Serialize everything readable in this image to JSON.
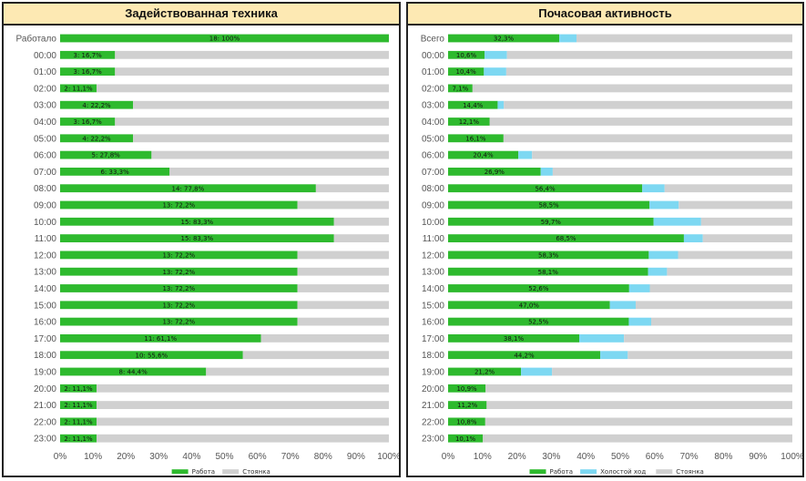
{
  "colors": {
    "work": "#2eba2e",
    "idle": "#7dd8f2",
    "stop": "#d0d0d0"
  },
  "charts": [
    {
      "title": "Задействованная техника",
      "chart_data": {
        "type": "bar",
        "orientation": "horizontal",
        "stacked": true,
        "categories": [
          "Работало",
          "00:00",
          "01:00",
          "02:00",
          "03:00",
          "04:00",
          "05:00",
          "06:00",
          "07:00",
          "08:00",
          "09:00",
          "10:00",
          "11:00",
          "12:00",
          "13:00",
          "14:00",
          "15:00",
          "16:00",
          "17:00",
          "18:00",
          "19:00",
          "20:00",
          "21:00",
          "22:00",
          "23:00"
        ],
        "series": [
          {
            "name": "Работа",
            "values": [
              100,
              16.7,
              16.7,
              11.1,
              22.2,
              16.7,
              22.2,
              27.8,
              33.3,
              77.8,
              72.2,
              83.3,
              83.3,
              72.2,
              72.2,
              72.2,
              72.2,
              72.2,
              61.1,
              55.6,
              44.4,
              11.1,
              11.1,
              11.1,
              11.1
            ]
          },
          {
            "name": "Стоянка",
            "values": [
              0,
              83.3,
              83.3,
              88.9,
              77.8,
              83.3,
              77.8,
              72.2,
              66.7,
              22.2,
              27.8,
              16.7,
              16.7,
              27.8,
              27.8,
              27.8,
              27.8,
              27.8,
              38.9,
              44.4,
              55.6,
              88.9,
              88.9,
              88.9,
              88.9
            ]
          }
        ],
        "data_labels": [
          "18: 100%",
          "3: 16,7%",
          "3: 16,7%",
          "2: 11,1%",
          "4: 22,2%",
          "3: 16,7%",
          "4: 22,2%",
          "5: 27,8%",
          "6: 33,3%",
          "14: 77,8%",
          "13: 72,2%",
          "15: 83,3%",
          "15: 83,3%",
          "13: 72,2%",
          "13: 72,2%",
          "13: 72,2%",
          "13: 72,2%",
          "13: 72,2%",
          "11: 61,1%",
          "10: 55,6%",
          "8: 44,4%",
          "2: 11,1%",
          "2: 11,1%",
          "2: 11,1%",
          "2: 11,1%"
        ],
        "xlim": [
          0,
          100
        ],
        "xticks": [
          "0%",
          "10%",
          "20%",
          "30%",
          "40%",
          "50%",
          "60%",
          "70%",
          "80%",
          "90%",
          "100%"
        ],
        "legend": "bottom"
      }
    },
    {
      "title": "Почасовая активность",
      "chart_data": {
        "type": "bar",
        "orientation": "horizontal",
        "stacked": true,
        "categories": [
          "Всего",
          "00:00",
          "01:00",
          "02:00",
          "03:00",
          "04:00",
          "05:00",
          "06:00",
          "07:00",
          "08:00",
          "09:00",
          "10:00",
          "11:00",
          "12:00",
          "13:00",
          "14:00",
          "15:00",
          "16:00",
          "17:00",
          "18:00",
          "19:00",
          "20:00",
          "21:00",
          "22:00",
          "23:00"
        ],
        "series": [
          {
            "name": "Работа",
            "values": [
              32.3,
              10.6,
              10.4,
              7.1,
              14.4,
              12.1,
              16.1,
              20.4,
              26.9,
              56.4,
              58.5,
              59.7,
              68.5,
              58.3,
              58.1,
              52.6,
              47.0,
              52.5,
              38.1,
              44.2,
              21.2,
              10.9,
              11.2,
              10.8,
              10.1
            ]
          },
          {
            "name": "Холостой ход",
            "values": [
              5.0,
              6.5,
              6.5,
              0,
              1.8,
              0,
              0,
              4.0,
              3.5,
              6.5,
              8.5,
              13.8,
              5.5,
              8.5,
              5.5,
              6.0,
              7.5,
              6.5,
              13.0,
              8.0,
              9.0,
              0,
              0,
              0,
              0
            ]
          },
          {
            "name": "Стоянка",
            "values": [
              62.7,
              82.9,
              83.1,
              92.9,
              83.8,
              87.9,
              83.9,
              75.6,
              69.6,
              37.1,
              33.0,
              26.5,
              26.0,
              33.2,
              36.4,
              41.4,
              45.5,
              41.0,
              48.9,
              47.8,
              69.8,
              89.1,
              88.8,
              89.2,
              89.9
            ]
          }
        ],
        "data_labels": [
          "32,3%",
          "10,6%",
          "10,4%",
          "7,1%",
          "14,4%",
          "12,1%",
          "16,1%",
          "20,4%",
          "26,9%",
          "56,4%",
          "58,5%",
          "59,7%",
          "68,5%",
          "58,3%",
          "58,1%",
          "52,6%",
          "47,0%",
          "52,5%",
          "38,1%",
          "44,2%",
          "21,2%",
          "10,9%",
          "11,2%",
          "10,8%",
          "10,1%"
        ],
        "xlim": [
          0,
          100
        ],
        "xticks": [
          "0%",
          "10%",
          "20%",
          "30%",
          "40%",
          "50%",
          "60%",
          "70%",
          "80%",
          "90%",
          "100%"
        ],
        "legend": "bottom"
      }
    }
  ]
}
